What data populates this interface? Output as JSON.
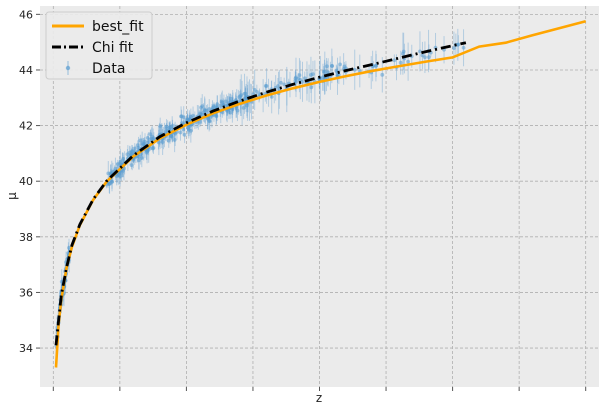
{
  "chart_data": {
    "type": "line",
    "title": "",
    "xlabel": "z",
    "ylabel": "μ",
    "x_tick_labels_visible": false,
    "xlim": [
      -0.05,
      2.05
    ],
    "ylim": [
      32.6,
      46.3
    ],
    "y_ticks": [
      34,
      36,
      38,
      40,
      42,
      44,
      46
    ],
    "grid": true,
    "legend_position": "top-left",
    "series": [
      {
        "name": "best_fit",
        "kind": "line",
        "color": "#FFA500",
        "style": "solid",
        "x": [
          0.01,
          0.02,
          0.03,
          0.05,
          0.07,
          0.1,
          0.15,
          0.2,
          0.3,
          0.4,
          0.5,
          0.6,
          0.7,
          0.8,
          0.9,
          1.0,
          1.1,
          1.2,
          1.3,
          1.4,
          1.5,
          1.6,
          1.7,
          1.8,
          1.9,
          2.0
        ],
        "y": [
          33.3,
          34.85,
          35.74,
          36.89,
          37.63,
          38.42,
          39.33,
          39.98,
          40.89,
          41.54,
          42.03,
          42.44,
          42.78,
          43.08,
          43.34,
          43.57,
          43.78,
          43.97,
          44.14,
          44.3,
          44.45,
          44.84,
          44.98,
          45.25,
          45.5,
          45.75
        ]
      },
      {
        "name": "Chi fit",
        "kind": "line",
        "color": "#000000",
        "style": "dashdot",
        "x": [
          0.01,
          0.02,
          0.03,
          0.05,
          0.07,
          0.1,
          0.15,
          0.2,
          0.3,
          0.4,
          0.5,
          0.6,
          0.7,
          0.8,
          0.9,
          1.0,
          1.1,
          1.2,
          1.3,
          1.4,
          1.55
        ],
        "y": [
          34.1,
          35.0,
          35.9,
          36.9,
          37.7,
          38.45,
          39.35,
          40.0,
          40.92,
          41.6,
          42.1,
          42.52,
          42.88,
          43.2,
          43.48,
          43.74,
          43.98,
          44.2,
          44.43,
          44.66,
          44.98
        ]
      },
      {
        "name": "Data",
        "kind": "errorbar",
        "color": "#5a9cd0",
        "count": 420,
        "z_range": [
          0.01,
          1.55
        ]
      }
    ]
  }
}
